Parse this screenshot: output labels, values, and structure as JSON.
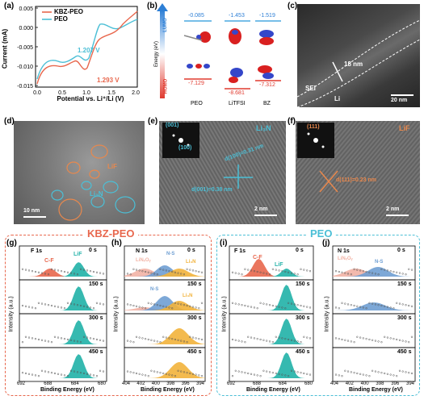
{
  "panel_a": {
    "label": "(a)",
    "legend": [
      "KBZ-PEO",
      "PEO"
    ],
    "ylabel": "Current (mA)",
    "xlabel": "Potential vs. Li⁺/Li (V)",
    "annotation_peo": "1.207 V",
    "annotation_kbz": "1.293 V",
    "colors": {
      "kbz": "#e8674d",
      "peo": "#4bbfd6"
    }
  },
  "panel_b": {
    "label": "(b)",
    "lumo_label": "LUMO",
    "homo_label": "HOMO",
    "axis_label": "Energy (eV)",
    "lumo_values": [
      "-0.085",
      "-1.453",
      "-1.519"
    ],
    "homo_values": [
      "-7.129",
      "-8.681",
      "-7.312"
    ],
    "molecules": [
      "PEO",
      "LiTFSI",
      "BZ"
    ]
  },
  "panel_c": {
    "label": "(c)",
    "thickness": "18 nm",
    "sei": "SEI",
    "li": "Li",
    "scale": "20 nm"
  },
  "panel_d": {
    "label": "(d)",
    "lif": "LiF",
    "li3n": "Li₃N",
    "scale": "10 nm"
  },
  "panel_e": {
    "label": "(e)",
    "compound": "Li₃N",
    "spot1": "(001)",
    "spot2": "(100)",
    "d1": "d(100)=0.31 nm",
    "d2": "d(001)=0.38 nm",
    "scale": "2 nm"
  },
  "panel_f": {
    "label": "(f)",
    "compound": "LiF",
    "spot": "(111)",
    "d": "d(111)=0.23 nm",
    "scale": "2 nm"
  },
  "group_kbz": "KBZ-PEO",
  "group_peo": "PEO",
  "xps": {
    "g": {
      "label": "(g)",
      "element": "F 1s",
      "peak1": "C-F",
      "peak2": "LiF"
    },
    "h": {
      "label": "(h)",
      "element": "N 1s",
      "peak1": "LiNₓOᵧ",
      "peak2": "N-S",
      "peak3": "Li₃N",
      "peak4": "N-S",
      "peak5": "Li₃N"
    },
    "i": {
      "label": "(i)",
      "element": "F 1s",
      "peak1": "C-F",
      "peak2": "LiF"
    },
    "j": {
      "label": "(j)",
      "element": "N 1s",
      "peak1": "LiNₓOᵧ",
      "peak2": "N-S"
    },
    "times": [
      "0 s",
      "150 s",
      "300 s",
      "450 s"
    ],
    "ylabel": "Intensity (a.u.)",
    "xlabel": "Binding Energy (eV)",
    "f_ticks": [
      "692",
      "688",
      "684",
      "680"
    ],
    "n_ticks": [
      "404",
      "402",
      "400",
      "398",
      "396",
      "394"
    ],
    "colors": {
      "cf": "#e8674d",
      "lif": "#2bb5ac",
      "linxoy": "#f2b3a5",
      "ns": "#6f9fd3",
      "li3n": "#f2b33b"
    }
  }
}
